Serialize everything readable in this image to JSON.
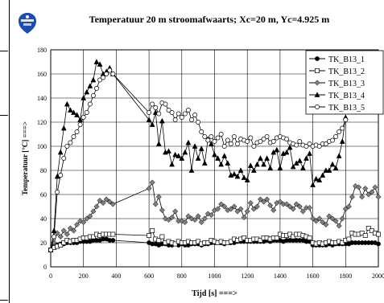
{
  "chart_data": {
    "type": "line",
    "title": "Temperatuur 20 m stroomafwaarts; Xc=20 m, Yc=4.925 m",
    "xlabel": "Tijd [s] ===>",
    "ylabel": "Temperatuur [°C] ===>",
    "xlim": [
      0,
      2000
    ],
    "ylim": [
      0,
      180
    ],
    "xticks": [
      0,
      200,
      400,
      600,
      800,
      1000,
      1200,
      1400,
      1600,
      1800,
      2000
    ],
    "yticks": [
      0,
      20,
      40,
      60,
      80,
      100,
      120,
      140,
      160,
      180
    ],
    "grid": true,
    "legend_position": "top-right",
    "series": [
      {
        "name": "TK_B13_1",
        "marker": "filled-circle",
        "x": [
          0,
          20,
          40,
          60,
          80,
          100,
          120,
          140,
          160,
          180,
          200,
          220,
          240,
          260,
          280,
          300,
          320,
          340,
          360,
          380,
          600,
          620,
          640,
          660,
          680,
          700,
          720,
          740,
          760,
          780,
          800,
          820,
          840,
          860,
          880,
          900,
          920,
          940,
          960,
          980,
          1000,
          1020,
          1040,
          1060,
          1080,
          1100,
          1120,
          1140,
          1160,
          1180,
          1200,
          1220,
          1240,
          1260,
          1280,
          1300,
          1320,
          1340,
          1360,
          1380,
          1400,
          1420,
          1440,
          1460,
          1480,
          1500,
          1520,
          1540,
          1560,
          1580,
          1600,
          1620,
          1640,
          1660,
          1680,
          1700,
          1720,
          1740,
          1760,
          1780,
          1800,
          1820,
          1840,
          1860,
          1880,
          1900,
          1920,
          1940,
          1960,
          1980,
          2000
        ],
        "y": [
          14,
          17,
          18,
          19,
          19,
          20,
          20,
          20,
          20,
          21,
          21,
          21,
          21,
          22,
          22,
          22,
          23,
          23,
          22,
          22,
          20,
          19,
          19,
          18,
          19,
          19,
          18,
          18,
          19,
          18,
          19,
          18,
          18,
          19,
          19,
          19,
          18,
          19,
          19,
          20,
          20,
          20,
          20,
          19,
          20,
          20,
          20,
          21,
          21,
          21,
          21,
          21,
          21,
          21,
          21,
          21,
          22,
          21,
          22,
          22,
          22,
          21,
          22,
          22,
          22,
          22,
          22,
          22,
          21,
          21,
          18,
          18,
          18,
          18,
          18,
          19,
          18,
          19,
          19,
          19,
          19,
          19,
          20,
          20,
          20,
          20,
          20,
          20,
          20,
          20,
          19
        ]
      },
      {
        "name": "TK_B13_2",
        "marker": "open-square",
        "x": [
          0,
          20,
          40,
          60,
          80,
          100,
          120,
          140,
          160,
          180,
          200,
          220,
          240,
          260,
          280,
          300,
          320,
          340,
          360,
          380,
          600,
          620,
          640,
          660,
          680,
          700,
          720,
          740,
          760,
          780,
          800,
          820,
          840,
          860,
          880,
          900,
          920,
          940,
          960,
          980,
          1000,
          1020,
          1040,
          1060,
          1080,
          1100,
          1120,
          1140,
          1160,
          1180,
          1200,
          1220,
          1240,
          1260,
          1280,
          1300,
          1320,
          1340,
          1360,
          1380,
          1400,
          1420,
          1440,
          1460,
          1480,
          1500,
          1520,
          1540,
          1560,
          1580,
          1600,
          1620,
          1640,
          1660,
          1680,
          1700,
          1720,
          1740,
          1760,
          1780,
          1800,
          1820,
          1840,
          1860,
          1880,
          1900,
          1920,
          1940,
          1960,
          1980,
          2000
        ],
        "y": [
          14,
          16,
          17,
          18,
          20,
          22,
          21,
          22,
          22,
          23,
          24,
          24,
          25,
          25,
          27,
          26,
          27,
          27,
          27,
          27,
          26,
          30,
          23,
          22,
          25,
          20,
          21,
          20,
          19,
          21,
          20,
          20,
          21,
          20,
          20,
          21,
          19,
          20,
          20,
          22,
          21,
          20,
          21,
          20,
          20,
          21,
          23,
          22,
          23,
          24,
          22,
          22,
          23,
          23,
          22,
          24,
          24,
          23,
          24,
          24,
          27,
          26,
          26,
          27,
          25,
          27,
          27,
          26,
          25,
          24,
          20,
          19,
          20,
          19,
          20,
          21,
          20,
          20,
          21,
          20,
          22,
          23,
          28,
          27,
          27,
          28,
          26,
          32,
          30,
          28,
          27
        ]
      },
      {
        "name": "TK_B13_3",
        "marker": "filled-diamond",
        "x": [
          0,
          20,
          40,
          60,
          80,
          100,
          120,
          140,
          160,
          180,
          200,
          220,
          240,
          260,
          280,
          300,
          320,
          340,
          360,
          380,
          600,
          620,
          640,
          660,
          680,
          700,
          720,
          740,
          760,
          780,
          800,
          820,
          840,
          860,
          880,
          900,
          920,
          940,
          960,
          980,
          1000,
          1020,
          1040,
          1060,
          1080,
          1100,
          1120,
          1140,
          1160,
          1180,
          1200,
          1220,
          1240,
          1260,
          1280,
          1300,
          1320,
          1340,
          1360,
          1380,
          1400,
          1420,
          1440,
          1460,
          1480,
          1500,
          1520,
          1540,
          1560,
          1580,
          1600,
          1620,
          1640,
          1660,
          1680,
          1700,
          1720,
          1740,
          1760,
          1780,
          1800,
          1820,
          1840,
          1860,
          1880,
          1900,
          1920,
          1940,
          1960,
          1980,
          2000
        ],
        "y": [
          14,
          20,
          28,
          25,
          30,
          27,
          32,
          30,
          35,
          38,
          37,
          40,
          42,
          46,
          50,
          55,
          53,
          56,
          54,
          52,
          65,
          70,
          52,
          58,
          47,
          40,
          39,
          41,
          46,
          38,
          38,
          37,
          42,
          40,
          39,
          42,
          37,
          40,
          44,
          43,
          47,
          48,
          52,
          50,
          47,
          48,
          50,
          46,
          48,
          41,
          46,
          53,
          48,
          50,
          56,
          54,
          56,
          51,
          47,
          53,
          54,
          52,
          52,
          50,
          48,
          52,
          50,
          46,
          49,
          49,
          40,
          38,
          40,
          37,
          35,
          42,
          40,
          38,
          34,
          40,
          48,
          50,
          58,
          67,
          66,
          58,
          65,
          60,
          62,
          66,
          58
        ]
      },
      {
        "name": "TK_B13_4",
        "marker": "filled-triangle",
        "x": [
          0,
          20,
          40,
          60,
          80,
          100,
          120,
          140,
          160,
          180,
          200,
          220,
          240,
          260,
          280,
          300,
          320,
          340,
          360,
          380,
          600,
          620,
          640,
          660,
          680,
          700,
          720,
          740,
          760,
          780,
          800,
          820,
          840,
          860,
          880,
          900,
          920,
          940,
          960,
          980,
          1000,
          1020,
          1040,
          1060,
          1080,
          1100,
          1120,
          1140,
          1160,
          1180,
          1200,
          1220,
          1240,
          1260,
          1280,
          1300,
          1320,
          1340,
          1360,
          1380,
          1400,
          1420,
          1440,
          1460,
          1480,
          1500,
          1520,
          1540,
          1560,
          1580,
          1600,
          1620,
          1640,
          1660,
          1680,
          1700,
          1720,
          1740,
          1760,
          1780,
          1800
        ],
        "y": [
          14,
          30,
          75,
          95,
          115,
          135,
          130,
          128,
          126,
          122,
          140,
          145,
          150,
          155,
          170,
          168,
          160,
          162,
          165,
          160,
          122,
          118,
          128,
          102,
          121,
          95,
          96,
          85,
          93,
          92,
          90,
          95,
          103,
          80,
          100,
          90,
          98,
          86,
          106,
          102,
          93,
          90,
          85,
          92,
          86,
          76,
          77,
          75,
          80,
          74,
          72,
          84,
          80,
          85,
          90,
          85,
          90,
          82,
          95,
          97,
          82,
          94,
          95,
          99,
          83,
          86,
          88,
          82,
          90,
          94,
          68,
          73,
          72,
          76,
          80,
          80,
          85,
          82,
          92,
          104,
          124
        ]
      },
      {
        "name": "TK_B13_5",
        "marker": "open-circle",
        "x": [
          0,
          20,
          40,
          60,
          80,
          100,
          120,
          140,
          160,
          180,
          200,
          220,
          240,
          260,
          280,
          300,
          320,
          340,
          360,
          380,
          600,
          620,
          640,
          660,
          680,
          700,
          720,
          740,
          760,
          780,
          800,
          820,
          840,
          860,
          880,
          900,
          920,
          940,
          960,
          980,
          1000,
          1020,
          1040,
          1060,
          1080,
          1100,
          1120,
          1140,
          1160,
          1180,
          1200,
          1220,
          1240,
          1260,
          1280,
          1300,
          1320,
          1340,
          1360,
          1380,
          1400,
          1420,
          1440,
          1460,
          1480,
          1500,
          1520,
          1540,
          1560,
          1580,
          1600,
          1620,
          1640,
          1660,
          1680,
          1700,
          1720,
          1740,
          1760,
          1780,
          1800
        ],
        "y": [
          14,
          25,
          62,
          76,
          90,
          100,
          103,
          108,
          112,
          118,
          124,
          128,
          135,
          142,
          148,
          155,
          157,
          160,
          163,
          160,
          128,
          135,
          132,
          127,
          136,
          135,
          130,
          128,
          122,
          127,
          124,
          127,
          130,
          122,
          126,
          120,
          112,
          108,
          105,
          108,
          104,
          107,
          110,
          100,
          105,
          102,
          108,
          102,
          106,
          105,
          104,
          107,
          100,
          103,
          104,
          106,
          108,
          103,
          104,
          107,
          108,
          107,
          106,
          103,
          102,
          101,
          104,
          101,
          100,
          102,
          100,
          101,
          100,
          102,
          102,
          104,
          105,
          108,
          112,
          115,
          122
        ]
      }
    ]
  }
}
